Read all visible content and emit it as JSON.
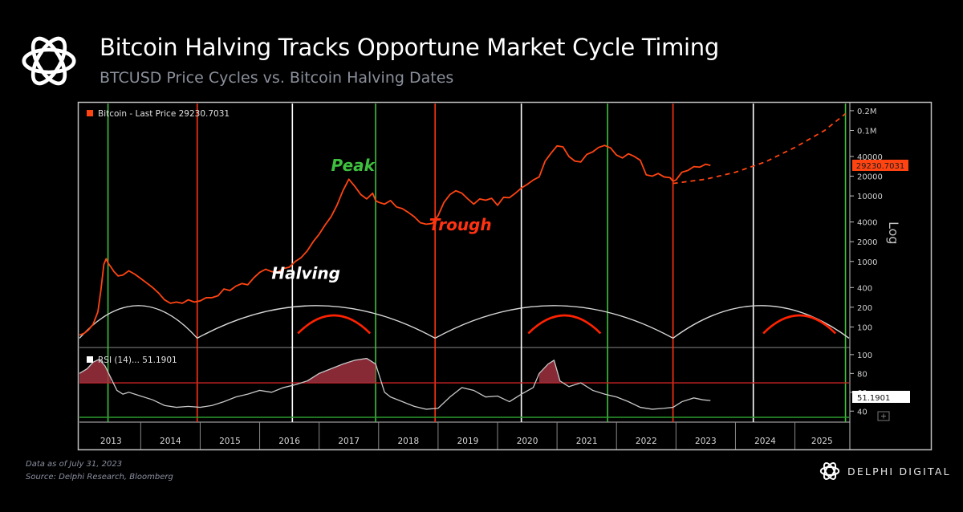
{
  "header": {
    "title": "Bitcoin Halving Tracks Opportune Market Cycle Timing",
    "subtitle": "BTCUSD Price Cycles vs. Bitcoin Halving Dates"
  },
  "footer": {
    "data_as_of": "Data as of July 31, 2023",
    "source": "Source: Delphi Research, Bloomberg",
    "brand": "DELPHI DIGITAL",
    "brand_icon": "delphi-knot-icon"
  },
  "colors": {
    "price": "#ff4411",
    "peak": "#3fbf3f",
    "trough": "#ff3311",
    "halving": "#ffffff",
    "rsi": "#c8c8c8",
    "rsi_fill": "#a0303f"
  },
  "chart_data": [
    {
      "type": "line",
      "legend": "Bitcoin - Last Price 29230.7031",
      "last_value_label": "29230.7031",
      "axis_label": "Log",
      "y_scale": "log",
      "ylim": [
        50,
        250000
      ],
      "xlim": [
        2012.97,
        2025.91
      ],
      "y_ticks": [
        100,
        200,
        400,
        1000,
        2000,
        4000,
        10000,
        20000,
        40000,
        100000,
        200000
      ],
      "y_tick_labels": [
        "100",
        "200",
        "400",
        "1000",
        "2000",
        "4000",
        "10000",
        "20000",
        "40000",
        "0.1M",
        "0.2M"
      ],
      "x_labels": [
        "2013",
        "2014",
        "2015",
        "2016",
        "2017",
        "2018",
        "2019",
        "2020",
        "2021",
        "2022",
        "2023",
        "2024",
        "2025"
      ],
      "annotations": [
        {
          "text": "Peak",
          "color": "peak",
          "x": 2017.2,
          "y": 24000
        },
        {
          "text": "Trough",
          "color": "trough",
          "x": 2018.85,
          "y": 3000
        },
        {
          "text": "Halving",
          "color": "halving",
          "x": 2016.2,
          "y": 540
        }
      ],
      "peaks": [
        2013.45,
        2017.95,
        2021.85,
        2025.85
      ],
      "troughs": [
        2014.95,
        2018.95,
        2022.95
      ],
      "halvings": [
        2016.55,
        2020.4,
        2024.3
      ],
      "series": [
        {
          "name": "Bitcoin - Last Price",
          "x": [
            2012.97,
            2013.05,
            2013.12,
            2013.2,
            2013.28,
            2013.33,
            2013.38,
            2013.42,
            2013.45,
            2013.5,
            2013.55,
            2013.62,
            2013.7,
            2013.8,
            2013.9,
            2014.0,
            2014.1,
            2014.2,
            2014.3,
            2014.4,
            2014.5,
            2014.6,
            2014.7,
            2014.8,
            2014.9,
            2015.0,
            2015.1,
            2015.2,
            2015.3,
            2015.4,
            2015.5,
            2015.6,
            2015.7,
            2015.8,
            2015.9,
            2016.0,
            2016.1,
            2016.2,
            2016.3,
            2016.4,
            2016.5,
            2016.6,
            2016.7,
            2016.8,
            2016.9,
            2017.0,
            2017.1,
            2017.2,
            2017.3,
            2017.4,
            2017.5,
            2017.6,
            2017.7,
            2017.8,
            2017.9,
            2017.95,
            2018.0,
            2018.1,
            2018.2,
            2018.3,
            2018.4,
            2018.5,
            2018.6,
            2018.7,
            2018.8,
            2018.9,
            2019.0,
            2019.1,
            2019.2,
            2019.3,
            2019.4,
            2019.5,
            2019.6,
            2019.7,
            2019.8,
            2019.9,
            2020.0,
            2020.1,
            2020.2,
            2020.3,
            2020.4,
            2020.5,
            2020.6,
            2020.7,
            2020.8,
            2020.9,
            2021.0,
            2021.1,
            2021.2,
            2021.3,
            2021.4,
            2021.5,
            2021.6,
            2021.7,
            2021.8,
            2021.9,
            2022.0,
            2022.1,
            2022.2,
            2022.3,
            2022.4,
            2022.5,
            2022.6,
            2022.7,
            2022.8,
            2022.9,
            2022.95,
            2023.0,
            2023.1,
            2023.2,
            2023.3,
            2023.4,
            2023.5,
            2023.58
          ],
          "values": [
            75,
            80,
            90,
            110,
            170,
            360,
            900,
            1100,
            950,
            820,
            700,
            600,
            620,
            720,
            640,
            550,
            470,
            400,
            330,
            260,
            230,
            240,
            230,
            260,
            240,
            250,
            280,
            280,
            300,
            380,
            360,
            420,
            460,
            440,
            560,
            680,
            760,
            700,
            680,
            780,
            820,
            1000,
            1150,
            1450,
            2000,
            2600,
            3600,
            4800,
            7200,
            12000,
            18000,
            14000,
            10500,
            9000,
            11000,
            8500,
            8000,
            7500,
            8500,
            6800,
            6400,
            5600,
            4800,
            3900,
            3700,
            3800,
            5000,
            8000,
            10500,
            12000,
            11000,
            9000,
            7500,
            9000,
            8600,
            9200,
            7200,
            9500,
            9400,
            11000,
            13200,
            15000,
            17500,
            19500,
            34000,
            45000,
            58000,
            56000,
            40000,
            34000,
            33000,
            43000,
            47000,
            55000,
            59000,
            54000,
            42000,
            38000,
            44000,
            40000,
            35000,
            21000,
            20000,
            22000,
            19500,
            19000,
            16800,
            17500,
            23000,
            24500,
            28000,
            27500,
            30500,
            29230
          ],
          "projection_x": [
            2022.95,
            2023.5,
            2024.0,
            2024.5,
            2025.0,
            2025.5,
            2025.85
          ],
          "projection_values": [
            15500,
            18000,
            23000,
            33000,
            55000,
            100000,
            180000
          ]
        }
      ]
    },
    {
      "type": "line",
      "legend": "RSI (14)... 51.1901",
      "last_value_label": "51.1901",
      "ylim": [
        30,
        105
      ],
      "y_ticks": [
        40,
        60,
        80,
        100
      ],
      "y_tick_labels": [
        "40",
        "60",
        "80",
        "100"
      ],
      "overbought_line": 70,
      "oversold_line": 30,
      "series": [
        {
          "name": "RSI (14)",
          "x": [
            2012.97,
            2013.1,
            2013.2,
            2013.3,
            2013.4,
            2013.5,
            2013.6,
            2013.7,
            2013.8,
            2014.0,
            2014.2,
            2014.4,
            2014.6,
            2014.8,
            2015.0,
            2015.2,
            2015.4,
            2015.6,
            2015.8,
            2016.0,
            2016.2,
            2016.4,
            2016.6,
            2016.8,
            2017.0,
            2017.2,
            2017.4,
            2017.6,
            2017.8,
            2017.95,
            2018.1,
            2018.2,
            2018.4,
            2018.6,
            2018.8,
            2019.0,
            2019.2,
            2019.4,
            2019.6,
            2019.8,
            2020.0,
            2020.2,
            2020.4,
            2020.6,
            2020.7,
            2020.85,
            2020.95,
            2021.05,
            2021.2,
            2021.4,
            2021.6,
            2021.8,
            2022.0,
            2022.2,
            2022.4,
            2022.6,
            2022.8,
            2022.95,
            2023.1,
            2023.3,
            2023.45,
            2023.58
          ],
          "values": [
            80,
            85,
            92,
            95,
            88,
            75,
            62,
            58,
            60,
            56,
            52,
            46,
            44,
            45,
            44,
            46,
            50,
            55,
            58,
            62,
            60,
            65,
            68,
            72,
            80,
            85,
            90,
            94,
            96,
            90,
            60,
            55,
            50,
            45,
            42,
            43,
            55,
            65,
            62,
            55,
            56,
            50,
            58,
            65,
            80,
            90,
            94,
            72,
            66,
            70,
            62,
            58,
            55,
            50,
            44,
            42,
            43,
            44,
            50,
            54,
            52,
            51.19
          ]
        }
      ]
    }
  ]
}
